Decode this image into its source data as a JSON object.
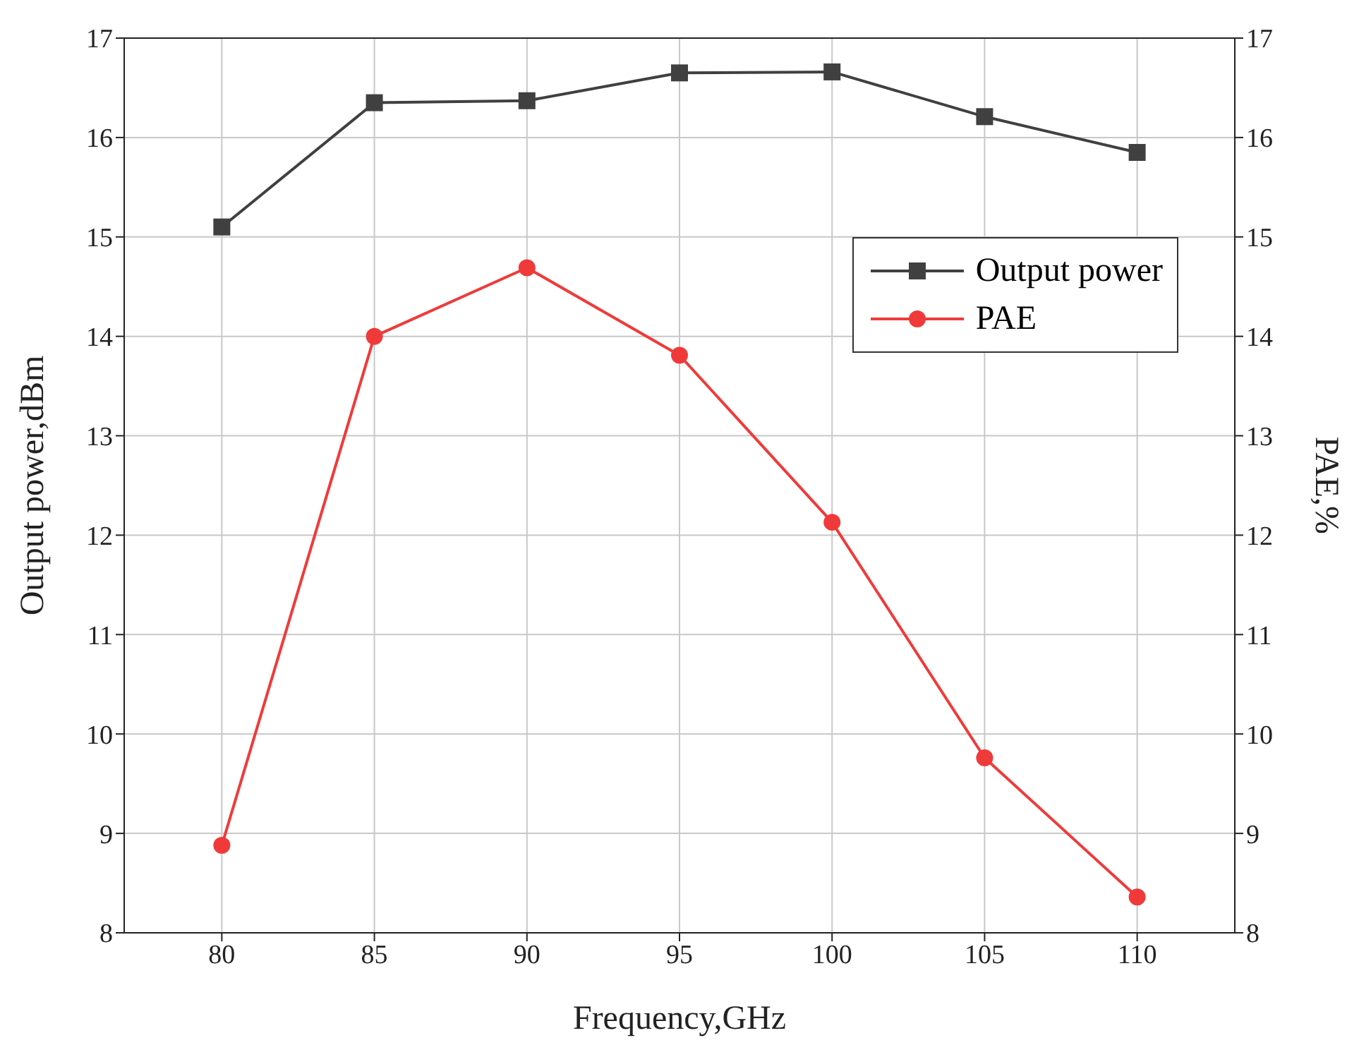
{
  "chart_data": {
    "type": "line",
    "xlabel": "Frequency,GHz",
    "ylabel": "Output power,dBm",
    "y2label": "PAE,%",
    "x": [
      80,
      85,
      90,
      95,
      100,
      105,
      110
    ],
    "series": [
      {
        "name": "Output power",
        "color": "#404040",
        "marker": "square",
        "values": [
          15.1,
          16.35,
          16.37,
          16.65,
          16.66,
          16.21,
          15.85
        ]
      },
      {
        "name": "PAE",
        "color": "#f03a3a",
        "marker": "circle",
        "axis": "y2",
        "values": [
          8.88,
          14.0,
          14.69,
          13.81,
          12.13,
          9.76,
          8.36
        ]
      }
    ],
    "xlim": [
      76.8,
      113.2
    ],
    "xticks": [
      80,
      85,
      90,
      95,
      100,
      105,
      110
    ],
    "ylim": [
      8,
      17
    ],
    "yticks": [
      8,
      9,
      10,
      11,
      12,
      13,
      14,
      15,
      16,
      17
    ],
    "y2lim": [
      8,
      17
    ],
    "y2ticks": [
      8,
      9,
      10,
      11,
      12,
      13,
      14,
      15,
      16,
      17
    ],
    "grid": true,
    "legend": "top right",
    "line_style": "solid"
  }
}
